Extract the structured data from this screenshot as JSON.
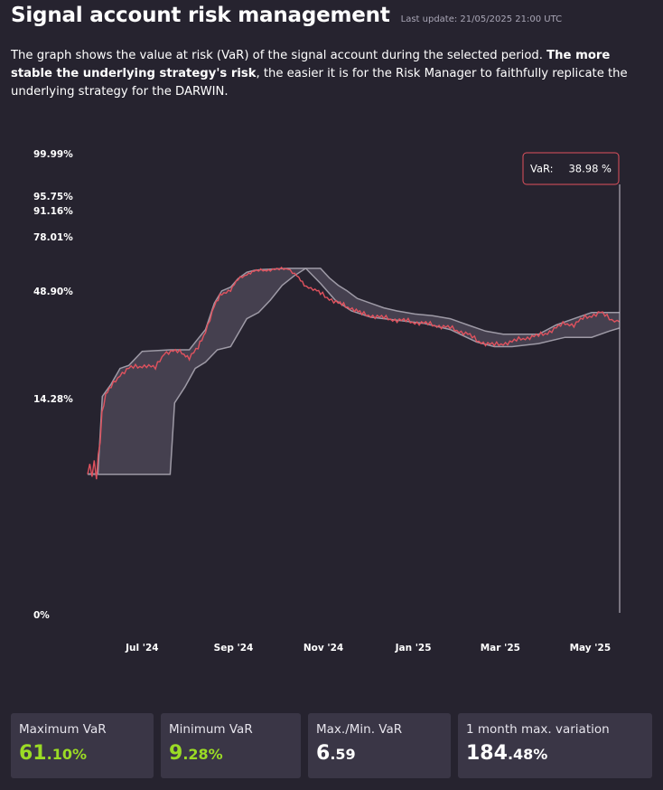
{
  "header": {
    "title": "Signal account risk management",
    "last_update": "Last update: 21/05/2025 21:00 UTC"
  },
  "description": {
    "part1": "The graph shows the value at risk (VaR) of the signal account during the selected period. ",
    "bold": "The more stable the underlying strategy's risk",
    "part2": ", the easier it is for the Risk Manager to faithfully replicate the underlying strategy for the DARWIN."
  },
  "tooltip": {
    "label": "VaR:",
    "value": "38.98 %"
  },
  "colors": {
    "background": "#26232f",
    "var_line": "#e0525e",
    "band_fill": "#45404f",
    "band_line": "#9e9aa6",
    "accent_green": "#9bdb25"
  },
  "chart_data": {
    "type": "area",
    "y_axis": {
      "ticks": [
        {
          "label": "0%",
          "value": 0
        },
        {
          "label": "14.28%",
          "value": 14.28
        },
        {
          "label": "48.90%",
          "value": 48.9
        },
        {
          "label": "78.01%",
          "value": 78.01
        },
        {
          "label": "91.16%",
          "value": 91.16
        },
        {
          "label": "95.75%",
          "value": 95.75
        },
        {
          "label": "99.99%",
          "value": 99.99
        }
      ]
    },
    "x_axis": {
      "ticks": [
        {
          "label": "Jul '24",
          "date": "2024-07-01"
        },
        {
          "label": "Sep '24",
          "date": "2024-09-01"
        },
        {
          "label": "Nov '24",
          "date": "2024-11-01"
        },
        {
          "label": "Jan '25",
          "date": "2025-01-01"
        },
        {
          "label": "Mar '25",
          "date": "2025-03-01"
        },
        {
          "label": "May '25",
          "date": "2025-05-01"
        }
      ],
      "range": [
        "2024-05-25",
        "2025-05-21"
      ]
    },
    "series": [
      {
        "role": "var",
        "points": [
          [
            "2024-05-25",
            9.28
          ],
          [
            "2024-05-31",
            9.3
          ],
          [
            "2024-06-05",
            14.5
          ],
          [
            "2024-06-10",
            18.0
          ],
          [
            "2024-06-16",
            22.0
          ],
          [
            "2024-06-22",
            24.0
          ],
          [
            "2024-06-28",
            24.5
          ],
          [
            "2024-07-04",
            25.0
          ],
          [
            "2024-07-10",
            24.0
          ],
          [
            "2024-07-16",
            29.0
          ],
          [
            "2024-07-22",
            29.5
          ],
          [
            "2024-07-28",
            29.0
          ],
          [
            "2024-08-02",
            27.5
          ],
          [
            "2024-08-08",
            30.5
          ],
          [
            "2024-08-13",
            36.0
          ],
          [
            "2024-08-19",
            44.0
          ],
          [
            "2024-08-24",
            48.0
          ],
          [
            "2024-08-30",
            49.5
          ],
          [
            "2024-09-04",
            55.0
          ],
          [
            "2024-09-10",
            58.0
          ],
          [
            "2024-09-15",
            59.5
          ],
          [
            "2024-09-21",
            60.0
          ],
          [
            "2024-09-26",
            60.3
          ],
          [
            "2024-10-02",
            60.5
          ],
          [
            "2024-10-08",
            61.1
          ],
          [
            "2024-10-14",
            57.0
          ],
          [
            "2024-10-19",
            52.0
          ],
          [
            "2024-10-25",
            50.0
          ],
          [
            "2024-10-30",
            48.0
          ],
          [
            "2024-11-05",
            46.5
          ],
          [
            "2024-11-11",
            45.0
          ],
          [
            "2024-11-16",
            44.0
          ],
          [
            "2024-11-22",
            43.0
          ],
          [
            "2024-11-27",
            41.5
          ],
          [
            "2024-12-03",
            41.0
          ],
          [
            "2024-12-09",
            40.5
          ],
          [
            "2024-12-15",
            40.0
          ],
          [
            "2024-12-21",
            39.5
          ],
          [
            "2024-12-27",
            39.3
          ],
          [
            "2025-01-02",
            38.8
          ],
          [
            "2025-01-08",
            38.5
          ],
          [
            "2025-01-14",
            38.0
          ],
          [
            "2025-01-20",
            37.5
          ],
          [
            "2025-01-26",
            37.0
          ],
          [
            "2025-02-01",
            36.0
          ],
          [
            "2025-02-07",
            35.0
          ],
          [
            "2025-02-13",
            33.0
          ],
          [
            "2025-02-19",
            32.0
          ],
          [
            "2025-02-25",
            31.5
          ],
          [
            "2025-03-03",
            32.0
          ],
          [
            "2025-03-09",
            32.5
          ],
          [
            "2025-03-15",
            33.5
          ],
          [
            "2025-03-21",
            34.0
          ],
          [
            "2025-03-27",
            34.5
          ],
          [
            "2025-04-02",
            35.5
          ],
          [
            "2025-04-08",
            37.0
          ],
          [
            "2025-04-14",
            38.5
          ],
          [
            "2025-04-20",
            38.0
          ],
          [
            "2025-04-26",
            40.0
          ],
          [
            "2025-05-02",
            41.0
          ],
          [
            "2025-05-08",
            42.0
          ],
          [
            "2025-05-14",
            40.0
          ],
          [
            "2025-05-21",
            38.98
          ]
        ]
      },
      {
        "role": "band_upper",
        "points": [
          [
            "2024-05-25",
            9.3
          ],
          [
            "2024-06-01",
            9.3
          ],
          [
            "2024-06-04",
            15.0
          ],
          [
            "2024-06-10",
            19.0
          ],
          [
            "2024-06-16",
            24.0
          ],
          [
            "2024-06-22",
            25.0
          ],
          [
            "2024-07-01",
            29.5
          ],
          [
            "2024-07-20",
            30.0
          ],
          [
            "2024-08-02",
            30.0
          ],
          [
            "2024-08-07",
            33.0
          ],
          [
            "2024-08-13",
            36.5
          ],
          [
            "2024-08-19",
            45.0
          ],
          [
            "2024-08-24",
            49.0
          ],
          [
            "2024-08-30",
            51.0
          ],
          [
            "2024-09-04",
            55.5
          ],
          [
            "2024-09-10",
            59.0
          ],
          [
            "2024-09-15",
            60.0
          ],
          [
            "2024-09-21",
            60.5
          ],
          [
            "2024-10-08",
            61.1
          ],
          [
            "2024-10-30",
            61.1
          ],
          [
            "2024-11-05",
            56.0
          ],
          [
            "2024-11-11",
            52.0
          ],
          [
            "2024-11-17",
            49.0
          ],
          [
            "2024-11-24",
            46.5
          ],
          [
            "2024-12-03",
            45.0
          ],
          [
            "2024-12-12",
            43.5
          ],
          [
            "2024-12-21",
            42.5
          ],
          [
            "2025-01-02",
            41.5
          ],
          [
            "2025-01-14",
            41.0
          ],
          [
            "2025-01-26",
            40.0
          ],
          [
            "2025-02-07",
            38.0
          ],
          [
            "2025-02-19",
            36.0
          ],
          [
            "2025-03-03",
            35.0
          ],
          [
            "2025-03-15",
            35.0
          ],
          [
            "2025-03-27",
            35.0
          ],
          [
            "2025-04-08",
            38.0
          ],
          [
            "2025-04-20",
            40.0
          ],
          [
            "2025-05-02",
            42.0
          ],
          [
            "2025-05-21",
            42.0
          ]
        ]
      },
      {
        "role": "band_lower",
        "points": [
          [
            "2024-05-25",
            9.28
          ],
          [
            "2024-07-20",
            9.28
          ],
          [
            "2024-07-23",
            14.0
          ],
          [
            "2024-07-30",
            18.0
          ],
          [
            "2024-08-06",
            24.0
          ],
          [
            "2024-08-13",
            26.0
          ],
          [
            "2024-08-21",
            30.0
          ],
          [
            "2024-08-30",
            31.0
          ],
          [
            "2024-09-10",
            40.0
          ],
          [
            "2024-09-18",
            42.0
          ],
          [
            "2024-09-26",
            46.0
          ],
          [
            "2024-10-04",
            52.0
          ],
          [
            "2024-10-12",
            57.0
          ],
          [
            "2024-10-20",
            61.1
          ],
          [
            "2024-10-30",
            53.0
          ],
          [
            "2024-11-09",
            46.0
          ],
          [
            "2024-11-20",
            42.5
          ],
          [
            "2024-12-03",
            40.5
          ],
          [
            "2024-12-21",
            39.5
          ],
          [
            "2025-01-08",
            38.5
          ],
          [
            "2025-01-26",
            36.5
          ],
          [
            "2025-02-13",
            32.5
          ],
          [
            "2025-02-25",
            31.0
          ],
          [
            "2025-03-09",
            31.0
          ],
          [
            "2025-03-27",
            32.0
          ],
          [
            "2025-04-14",
            34.0
          ],
          [
            "2025-05-02",
            34.0
          ],
          [
            "2025-05-14",
            36.0
          ],
          [
            "2025-05-21",
            37.0
          ]
        ]
      }
    ],
    "grid": false,
    "legend": "none"
  },
  "stats": [
    {
      "label": "Maximum VaR",
      "int": "61",
      "dec": ".10%",
      "color": "green"
    },
    {
      "label": "Minimum VaR",
      "int": "9",
      "dec": ".28%",
      "color": "green"
    },
    {
      "label": "Max./Min. VaR",
      "int": "6",
      "dec": ".59",
      "color": "white"
    },
    {
      "label": "1 month max. variation",
      "int": "184",
      "dec": ".48%",
      "color": "white"
    }
  ]
}
